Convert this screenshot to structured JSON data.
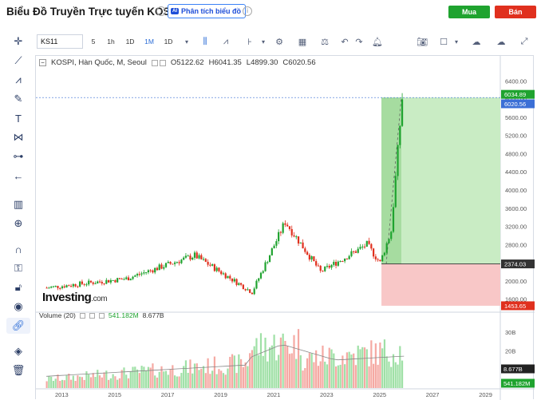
{
  "header": {
    "title": "Biểu Đồ Truyền Trực tuyến KOSPI",
    "analyze_label": "Phân tích biểu đồ",
    "ai_badge": "AI",
    "buy_label": "Mua",
    "sell_label": "Bán"
  },
  "toolbar": {
    "symbol": "KS11",
    "timeframes": [
      "5",
      "1h",
      "1D",
      "1M",
      "1D"
    ],
    "active_timeframe": "1M"
  },
  "left_tools": [
    "crosshair-icon",
    "trendline-icon",
    "fib-icon",
    "brush-icon",
    "text-icon",
    "pattern-icon",
    "measure-icon",
    "back-arrow-icon",
    "ruler-icon",
    "zoom-in-icon",
    "magnet-icon",
    "lock-draw-icon",
    "unlock-icon",
    "eye-icon",
    "link-icon",
    "layers-icon",
    "trash-icon"
  ],
  "legend": {
    "name": "KOSPI, Hàn Quốc, M, Seoul",
    "open": "O5122.62",
    "high": "H6041.35",
    "low": "L4899.30",
    "close": "C6020.56"
  },
  "volume_legend": {
    "label": "Volume (20)",
    "value1": "541.182M",
    "value2": "8.677B"
  },
  "watermark": {
    "brand": "Investing",
    "suffix": ".com"
  },
  "chart_data": {
    "type": "candlestick",
    "x_ticks": [
      "2013",
      "2015",
      "2017",
      "2019",
      "2021",
      "2023",
      "2025",
      "2027",
      "2029"
    ],
    "price_ticks": [
      "6400.00",
      "6000.00",
      "5600.00",
      "5200.00",
      "4800.00",
      "4400.00",
      "4000.00",
      "3600.00",
      "3200.00",
      "2800.00",
      "2400.00",
      "2000.00",
      "1600.00"
    ],
    "price_labels": {
      "high": "6034.89",
      "last": "6020.56",
      "entry": "2374.03",
      "stop": "1453.65"
    },
    "volume_ticks": [
      "30B",
      "20B",
      "10B"
    ],
    "volume_labels": {
      "ma": "8.677B",
      "vol": "541.182M"
    },
    "ylim": [
      1400,
      6600
    ],
    "key_points": [
      {
        "date": "2012-06",
        "close": 1850
      },
      {
        "date": "2015-06",
        "close": 2050
      },
      {
        "date": "2018-01",
        "close": 2560
      },
      {
        "date": "2020-03",
        "close": 1750
      },
      {
        "date": "2021-06",
        "close": 3300
      },
      {
        "date": "2022-10",
        "close": 2200
      },
      {
        "date": "2024-07",
        "close": 2800
      },
      {
        "date": "2025-01",
        "close": 2400
      },
      {
        "date": "2025-06",
        "close": 3100
      },
      {
        "date": "2025-11",
        "close": 6020
      }
    ],
    "colors": {
      "up": "#1fa32f",
      "down": "#e0301e",
      "target_zone": "#c9ecc4",
      "stop_zone": "#f8c7c7"
    }
  }
}
